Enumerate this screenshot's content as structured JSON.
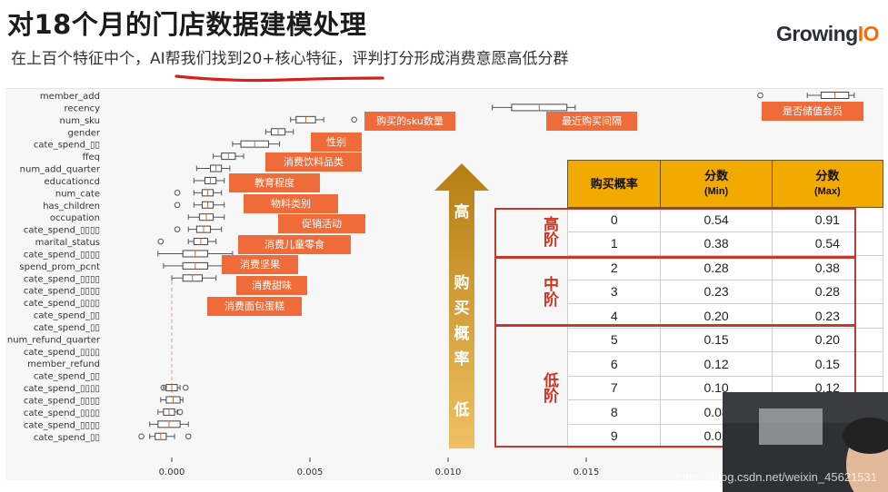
{
  "header": {
    "title": "对18个月的门店数据建模处理",
    "subtitle_pre": "在上百个特征中个，",
    "subtitle_hl": "AI帮我们找到20+核心特征",
    "subtitle_post": "，评判打分形成消费意愿高低分群"
  },
  "logo": {
    "main": "Growing",
    "accent": "IO"
  },
  "colors": {
    "tag": "#ef6c3a",
    "table_header": "#f2a900",
    "level_text": "#d0331f",
    "arrow": "#c88a18",
    "underline": "#d8201a"
  },
  "chart_data": {
    "type": "box",
    "features": [
      "member_add",
      "recency",
      "num_sku",
      "gender",
      "cate_spend_▯▯",
      "ffeq",
      "num_add_quarter",
      "educationcd",
      "num_cate",
      "has_children",
      "occupation",
      "cate_spend_▯▯▯▯",
      "marital_status",
      "cate_spend_▯▯▯▯",
      "spend_prom_pcnt",
      "cate_spend_▯▯▯▯",
      "cate_spend_▯▯▯▯",
      "cate_spend_▯▯▯▯",
      "cate_spend_▯▯",
      "cate_spend_▯▯",
      "num_refund_quarter",
      "cate_spend_▯▯▯▯",
      "member_refund",
      "cate_spend_▯▯",
      "cate_spend_▯▯▯▯",
      "cate_spend_▯▯▯▯",
      "cate_spend_▯▯▯▯",
      "cate_spend_▯▯▯▯",
      "cate_spend_▯▯"
    ],
    "boxes": [
      {
        "q1": 0.0235,
        "q3": 0.0245,
        "wl": 0.023,
        "wh": 0.0247,
        "out": [
          0.0213
        ]
      },
      {
        "q1": 0.0123,
        "q3": 0.0143,
        "wl": 0.0116,
        "wh": 0.0146,
        "out": []
      },
      {
        "q1": 0.0045,
        "q3": 0.0052,
        "wl": 0.0043,
        "wh": 0.0055,
        "out": [
          0.0066
        ]
      },
      {
        "q1": 0.0036,
        "q3": 0.0041,
        "wl": 0.0034,
        "wh": 0.0044,
        "out": []
      },
      {
        "q1": 0.0025,
        "q3": 0.0035,
        "wl": 0.0022,
        "wh": 0.0039,
        "out": []
      },
      {
        "q1": 0.0018,
        "q3": 0.0023,
        "wl": 0.0015,
        "wh": 0.0026,
        "out": []
      },
      {
        "q1": 0.0014,
        "q3": 0.0018,
        "wl": 0.0009,
        "wh": 0.0021,
        "out": []
      },
      {
        "q1": 0.0012,
        "q3": 0.0016,
        "wl": 0.0008,
        "wh": 0.0019,
        "out": []
      },
      {
        "q1": 0.0011,
        "q3": 0.0015,
        "wl": 0.0008,
        "wh": 0.0018,
        "out": [
          0.0002
        ]
      },
      {
        "q1": 0.0011,
        "q3": 0.0015,
        "wl": 0.0008,
        "wh": 0.0019,
        "out": [
          0.0002
        ]
      },
      {
        "q1": 0.001,
        "q3": 0.0015,
        "wl": 0.0006,
        "wh": 0.0019,
        "out": []
      },
      {
        "q1": 0.0009,
        "q3": 0.0014,
        "wl": 0.0006,
        "wh": 0.0018,
        "out": [
          0.0002
        ]
      },
      {
        "q1": 0.0008,
        "q3": 0.0013,
        "wl": 0.0006,
        "wh": 0.0016,
        "out": [
          -0.0004
        ]
      },
      {
        "q1": 0.0004,
        "q3": 0.0013,
        "wl": -0.0005,
        "wh": 0.0022,
        "out": []
      },
      {
        "q1": 0.0004,
        "q3": 0.0013,
        "wl": -0.0003,
        "wh": 0.002,
        "out": []
      },
      {
        "q1": 0.0004,
        "q3": 0.0011,
        "wl": 0.0,
        "wh": 0.0016,
        "out": []
      },
      {
        "q1": 0.0,
        "q3": 0.0,
        "wl": 0.0,
        "wh": 0.0,
        "out": []
      },
      {
        "q1": 0.0,
        "q3": 0.0,
        "wl": 0.0,
        "wh": 0.0,
        "out": []
      },
      {
        "q1": 0.0,
        "q3": 0.0,
        "wl": 0.0,
        "wh": 0.0,
        "out": []
      },
      {
        "q1": 0.0,
        "q3": 0.0,
        "wl": 0.0,
        "wh": 0.0,
        "out": []
      },
      {
        "q1": 0.0,
        "q3": 0.0,
        "wl": 0.0,
        "wh": 0.0,
        "out": []
      },
      {
        "q1": 0.0,
        "q3": 0.0,
        "wl": 0.0,
        "wh": 0.0,
        "out": []
      },
      {
        "q1": 0.0,
        "q3": 0.0,
        "wl": 0.0,
        "wh": 0.0,
        "out": []
      },
      {
        "q1": 0.0,
        "q3": 0.0,
        "wl": 0.0,
        "wh": 0.0,
        "out": []
      },
      {
        "q1": -0.0002,
        "q3": 0.0002,
        "wl": -0.0003,
        "wh": 0.0003,
        "out": [
          -0.0003,
          0.0005
        ]
      },
      {
        "q1": -0.0002,
        "q3": 0.0003,
        "wl": -0.0004,
        "wh": 0.0004,
        "out": []
      },
      {
        "q1": -0.0003,
        "q3": 0.0001,
        "wl": -0.0005,
        "wh": 0.0002,
        "out": [
          0.0003
        ]
      },
      {
        "q1": -0.0005,
        "q3": 0.0003,
        "wl": -0.0008,
        "wh": 0.0006,
        "out": []
      },
      {
        "q1": -0.0006,
        "q3": -0.0002,
        "wl": -0.0008,
        "wh": 0.0001,
        "out": [
          -0.0011,
          0.0006
        ]
      }
    ],
    "xticks": [
      0.0,
      0.005,
      0.01,
      0.015
    ],
    "xtick_labels": [
      "0.000",
      "0.005",
      "0.010",
      "0.015"
    ],
    "xlim": [
      -0.0015,
      0.026
    ],
    "annotations": [
      "购买的sku数量",
      "最近购买间隔",
      "是否储值会员",
      "性别",
      "消费饮料品类",
      "教育程度",
      "物料类别",
      "促销活动",
      "消费儿童零食",
      "消费坚果",
      "消费甜味",
      "消费面包蛋糕"
    ]
  },
  "arrow": {
    "top": "高",
    "middle": "购买概率",
    "bottom": "低"
  },
  "table": {
    "headers": [
      {
        "main": "购买概率",
        "sub": ""
      },
      {
        "main": "分数",
        "sub": "(Min)"
      },
      {
        "main": "分数",
        "sub": "(Max)"
      }
    ],
    "groups": [
      {
        "label": "高阶",
        "rows": [
          [
            "0",
            "0.54",
            "0.91"
          ],
          [
            "1",
            "0.38",
            "0.54"
          ]
        ]
      },
      {
        "label": "中阶",
        "rows": [
          [
            "2",
            "0.28",
            "0.38"
          ],
          [
            "3",
            "0.23",
            "0.28"
          ],
          [
            "4",
            "0.20",
            "0.23"
          ]
        ]
      },
      {
        "label": "低阶",
        "rows": [
          [
            "5",
            "0.15",
            "0.20"
          ],
          [
            "6",
            "0.12",
            "0.15"
          ],
          [
            "7",
            "0.10",
            "0.12"
          ],
          [
            "8",
            "0.08",
            "0.10"
          ],
          [
            "9",
            "0.02",
            "0.08"
          ]
        ]
      }
    ]
  },
  "watermark": "https://blog.csdn.net/weixin_45621531"
}
